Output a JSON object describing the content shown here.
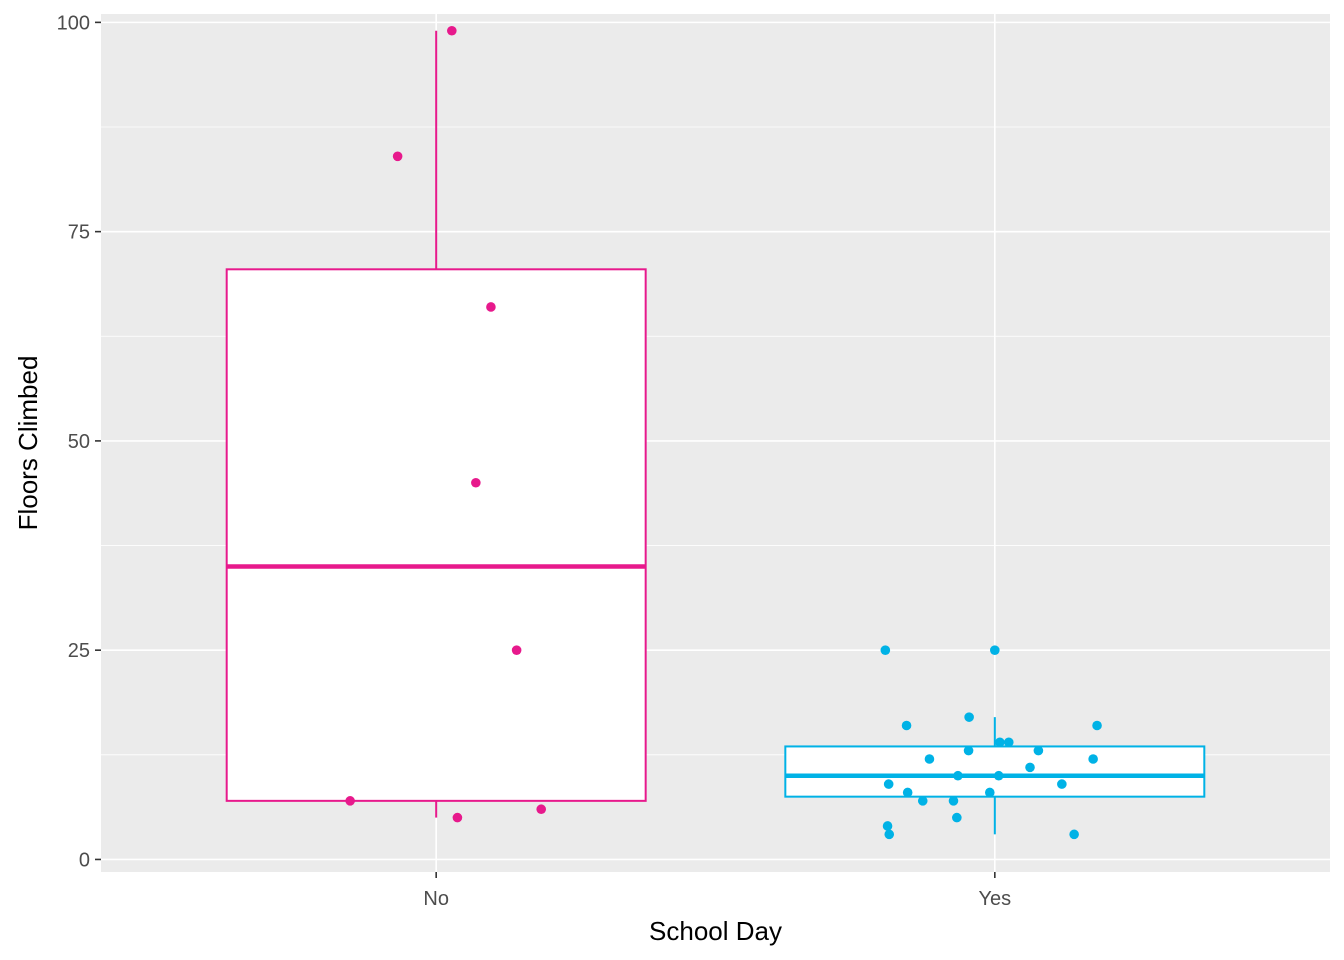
{
  "chart_data": {
    "type": "boxplot",
    "xlabel": "School Day",
    "ylabel": "Floors Climbed",
    "categories": [
      "No",
      "Yes"
    ],
    "ylim": [
      -1.5,
      101
    ],
    "yticks": [
      0,
      25,
      50,
      75,
      100
    ],
    "yticks_labels": [
      "0",
      "25",
      "50",
      "75",
      "100"
    ],
    "grid": true,
    "background": "#ebebeb",
    "series": [
      {
        "category": "No",
        "color": "#e7198c",
        "box": {
          "min": 5,
          "q1": 7,
          "median": 35,
          "q3": 70.5,
          "max": 99
        },
        "points": [
          {
            "x": -0.154,
            "y": 7
          },
          {
            "x": -0.069,
            "y": 84
          },
          {
            "x": 0.028,
            "y": 99
          },
          {
            "x": 0.038,
            "y": 5
          },
          {
            "x": 0.071,
            "y": 45
          },
          {
            "x": 0.098,
            "y": 66
          },
          {
            "x": 0.144,
            "y": 25
          },
          {
            "x": 0.188,
            "y": 6
          }
        ]
      },
      {
        "category": "Yes",
        "color": "#00b2e6",
        "box": {
          "min": 3,
          "q1": 7.5,
          "median": 10,
          "q3": 13.5,
          "max": 17
        },
        "points": [
          {
            "x": -0.196,
            "y": 25
          },
          {
            "x": -0.192,
            "y": 4
          },
          {
            "x": -0.19,
            "y": 9
          },
          {
            "x": -0.189,
            "y": 3
          },
          {
            "x": -0.158,
            "y": 16
          },
          {
            "x": -0.156,
            "y": 8
          },
          {
            "x": -0.129,
            "y": 7
          },
          {
            "x": -0.117,
            "y": 12
          },
          {
            "x": -0.074,
            "y": 7
          },
          {
            "x": -0.068,
            "y": 5
          },
          {
            "x": -0.066,
            "y": 10
          },
          {
            "x": -0.047,
            "y": 13
          },
          {
            "x": -0.046,
            "y": 17
          },
          {
            "x": -0.009,
            "y": 8
          },
          {
            "x": 0.0,
            "y": 25
          },
          {
            "x": 0.007,
            "y": 10
          },
          {
            "x": 0.009,
            "y": 14
          },
          {
            "x": 0.025,
            "y": 14
          },
          {
            "x": 0.063,
            "y": 11
          },
          {
            "x": 0.078,
            "y": 13
          },
          {
            "x": 0.12,
            "y": 9
          },
          {
            "x": 0.142,
            "y": 3
          },
          {
            "x": 0.176,
            "y": 12
          },
          {
            "x": 0.183,
            "y": 16
          }
        ]
      }
    ]
  }
}
